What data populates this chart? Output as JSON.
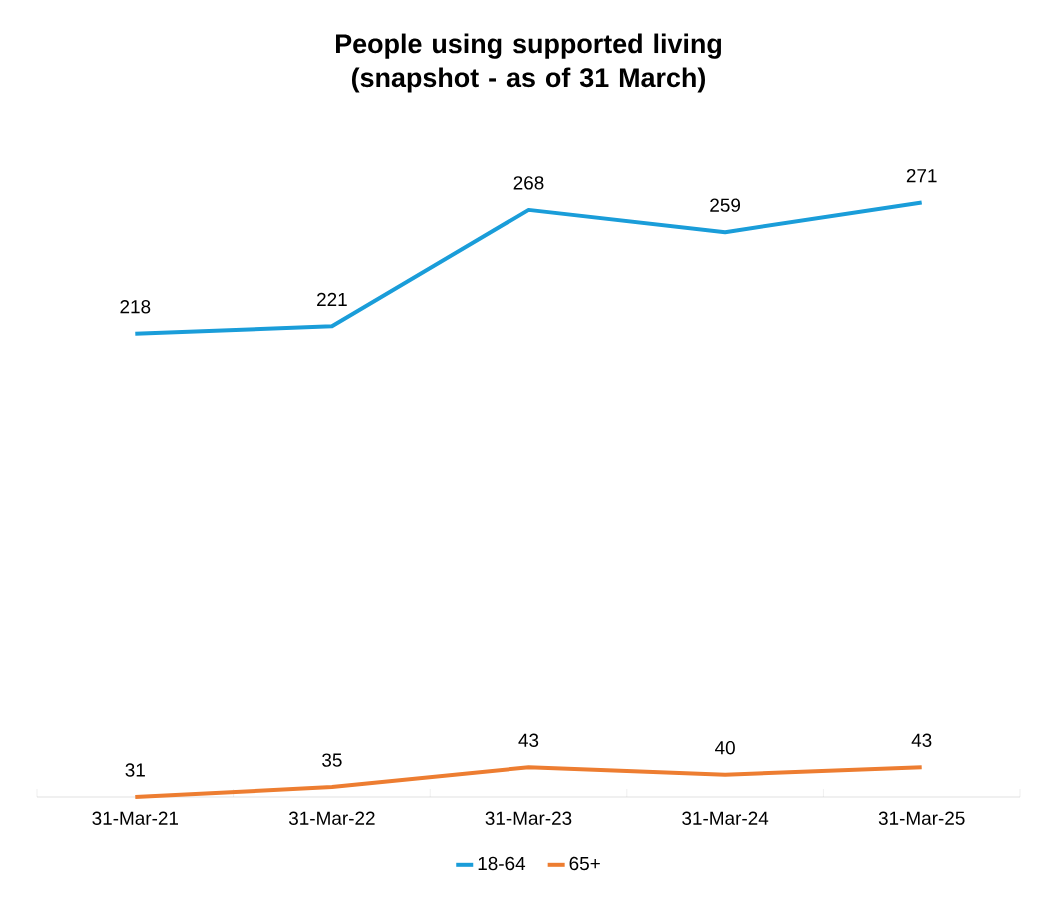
{
  "chart_data": {
    "type": "line",
    "title": "People using supported living (snapshot - as of 31 March)",
    "categories": [
      "31-Mar-21",
      "31-Mar-22",
      "31-Mar-23",
      "31-Mar-24",
      "31-Mar-25"
    ],
    "series": [
      {
        "name": "18-64",
        "color": "#1a9dd9",
        "values": [
          218,
          221,
          268,
          259,
          271
        ]
      },
      {
        "name": "65+",
        "color": "#ed7d31",
        "values": [
          31,
          35,
          43,
          40,
          43
        ]
      }
    ],
    "data_labels": true,
    "legend": "bottom",
    "marker": "none",
    "line_style": "solid"
  }
}
